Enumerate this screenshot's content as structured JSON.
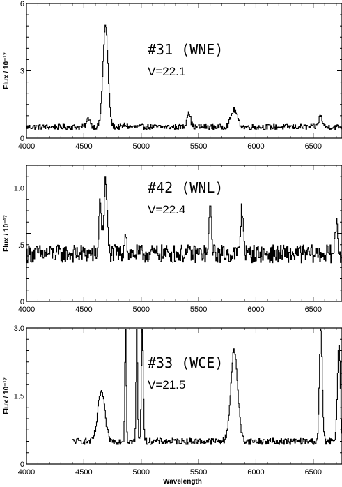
{
  "chart_data": [
    {
      "type": "line",
      "annotation_title": "#31 (WNE)",
      "annotation_v": "V=22.1",
      "ylabel": "Flux / 10⁻¹⁷",
      "xlabel": "",
      "xlim": [
        4000,
        6750
      ],
      "ylim": [
        0,
        6
      ],
      "x_ticks": [
        "4000",
        "4500",
        "5000",
        "5500",
        "6000",
        "6500"
      ],
      "y_ticks": [
        {
          "value": 0,
          "label": "0"
        },
        {
          "value": 3,
          "label": "3"
        },
        {
          "value": 6,
          "label": "6"
        }
      ],
      "baseline": 0.5,
      "noise": 0.12,
      "features": [
        {
          "center": 4540,
          "peak": 0.9,
          "width": 15
        },
        {
          "center": 4686,
          "peak": 5.0,
          "width": 22
        },
        {
          "center": 4860,
          "peak": 0.6,
          "width": 12
        },
        {
          "center": 5411,
          "peak": 1.2,
          "width": 15
        },
        {
          "center": 5808,
          "peak": 1.25,
          "width": 28
        },
        {
          "center": 6560,
          "peak": 1.0,
          "width": 15
        }
      ],
      "series": [
        {
          "x_start": 4000,
          "x_end": 6750
        }
      ]
    },
    {
      "type": "line",
      "annotation_title": "#42 (WNL)",
      "annotation_v": "V=22.4",
      "ylabel": "Flux / 10⁻¹⁷",
      "xlabel": "",
      "xlim": [
        4000,
        6750
      ],
      "ylim": [
        0,
        1.2
      ],
      "x_ticks": [
        "4000",
        "4500",
        "5000",
        "5500",
        "6000",
        "6500"
      ],
      "y_ticks": [
        {
          "value": 0,
          "label": "0"
        },
        {
          "value": 0.5,
          "label": ".5"
        },
        {
          "value": 1.0,
          "label": "1.0"
        }
      ],
      "baseline": 0.42,
      "noise": 0.08,
      "features": [
        {
          "center": 4640,
          "peak": 0.92,
          "width": 10
        },
        {
          "center": 4686,
          "peak": 1.05,
          "width": 14
        },
        {
          "center": 4860,
          "peak": 0.62,
          "width": 10
        },
        {
          "center": 5600,
          "peak": 0.85,
          "width": 10
        },
        {
          "center": 5876,
          "peak": 0.82,
          "width": 12
        },
        {
          "center": 6700,
          "peak": 0.72,
          "width": 10
        }
      ],
      "series": [
        {
          "x_start": 4000,
          "x_end": 6750
        }
      ]
    },
    {
      "type": "line",
      "annotation_title": "#33 (WCE)",
      "annotation_v": "V=21.5",
      "ylabel": "Flux / 10⁻¹⁷",
      "xlabel": "Wavelength",
      "xlim": [
        4000,
        6750
      ],
      "ylim": [
        0,
        3.0
      ],
      "x_ticks": [
        "4000",
        "4500",
        "5000",
        "5500",
        "6000",
        "6500"
      ],
      "y_ticks": [
        {
          "value": 0,
          "label": "0"
        },
        {
          "value": 1.5,
          "label": "1.5"
        },
        {
          "value": 3.0,
          "label": "3.0"
        }
      ],
      "baseline": 0.5,
      "noise": 0.07,
      "features": [
        {
          "center": 4650,
          "peak": 1.6,
          "width": 30
        },
        {
          "center": 4861,
          "peak": 3.0,
          "width": 6
        },
        {
          "center": 4959,
          "peak": 3.0,
          "width": 6
        },
        {
          "center": 5007,
          "peak": 3.0,
          "width": 8
        },
        {
          "center": 5808,
          "peak": 2.5,
          "width": 30
        },
        {
          "center": 6563,
          "peak": 3.0,
          "width": 12
        },
        {
          "center": 6720,
          "peak": 2.7,
          "width": 12
        }
      ],
      "series": [
        {
          "x_start": 4400,
          "x_end": 6750
        }
      ]
    }
  ]
}
